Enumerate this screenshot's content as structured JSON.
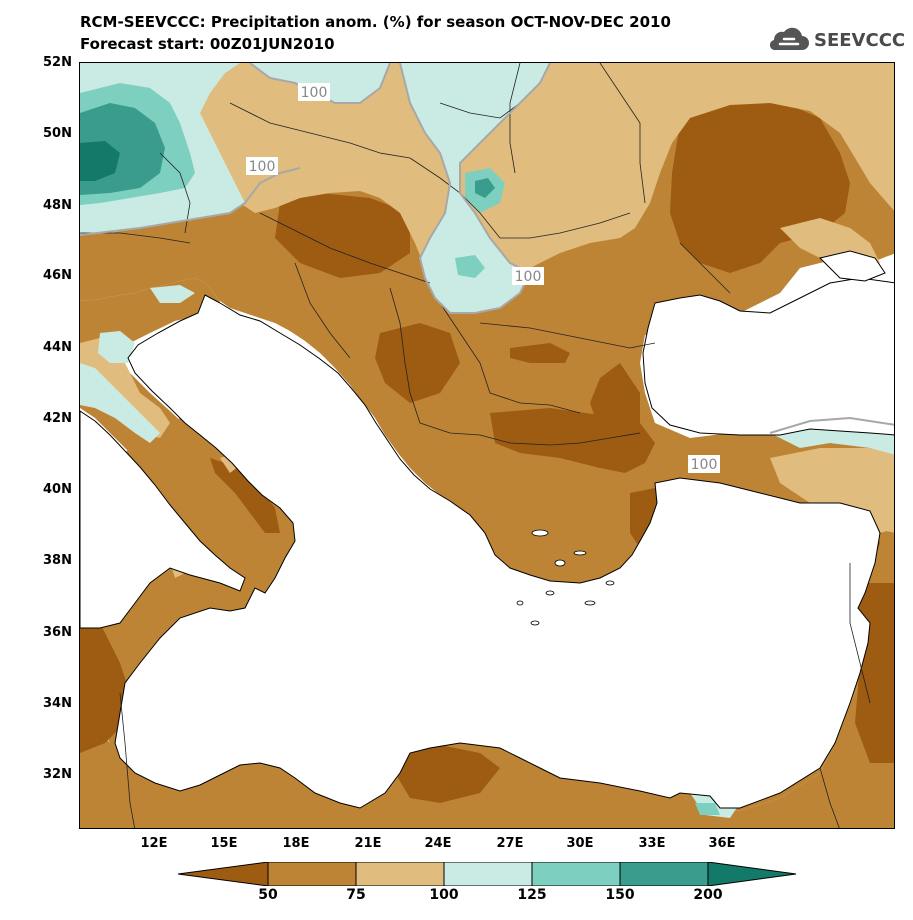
{
  "title_line1": "RCM-SEEVCCC: Precipitation anom. (%) for season OCT-NOV-DEC 2010",
  "title_line2": "Forecast start: 00Z01JUN2010",
  "logo_text": "SEEVCCC",
  "lat_labels": [
    "52N",
    "50N",
    "48N",
    "46N",
    "44N",
    "42N",
    "40N",
    "38N",
    "36N",
    "34N",
    "32N"
  ],
  "lon_labels": [
    "12E",
    "15E",
    "18E",
    "21E",
    "24E",
    "27E",
    "30E",
    "33E",
    "36E"
  ],
  "contour_labels": [
    "100",
    "100",
    "100",
    "100"
  ],
  "colorbar": {
    "labels": [
      "50",
      "75",
      "100",
      "125",
      "150",
      "200"
    ],
    "colors": [
      "#9e5c12",
      "#be8435",
      "#e0bd7e",
      "#c9ebe3",
      "#7dcfc0",
      "#3a9c8c",
      "#137a6a"
    ]
  },
  "colors": {
    "sea": "#ffffff",
    "coast": "#000000",
    "contour_line": "#a8a8a8"
  }
}
